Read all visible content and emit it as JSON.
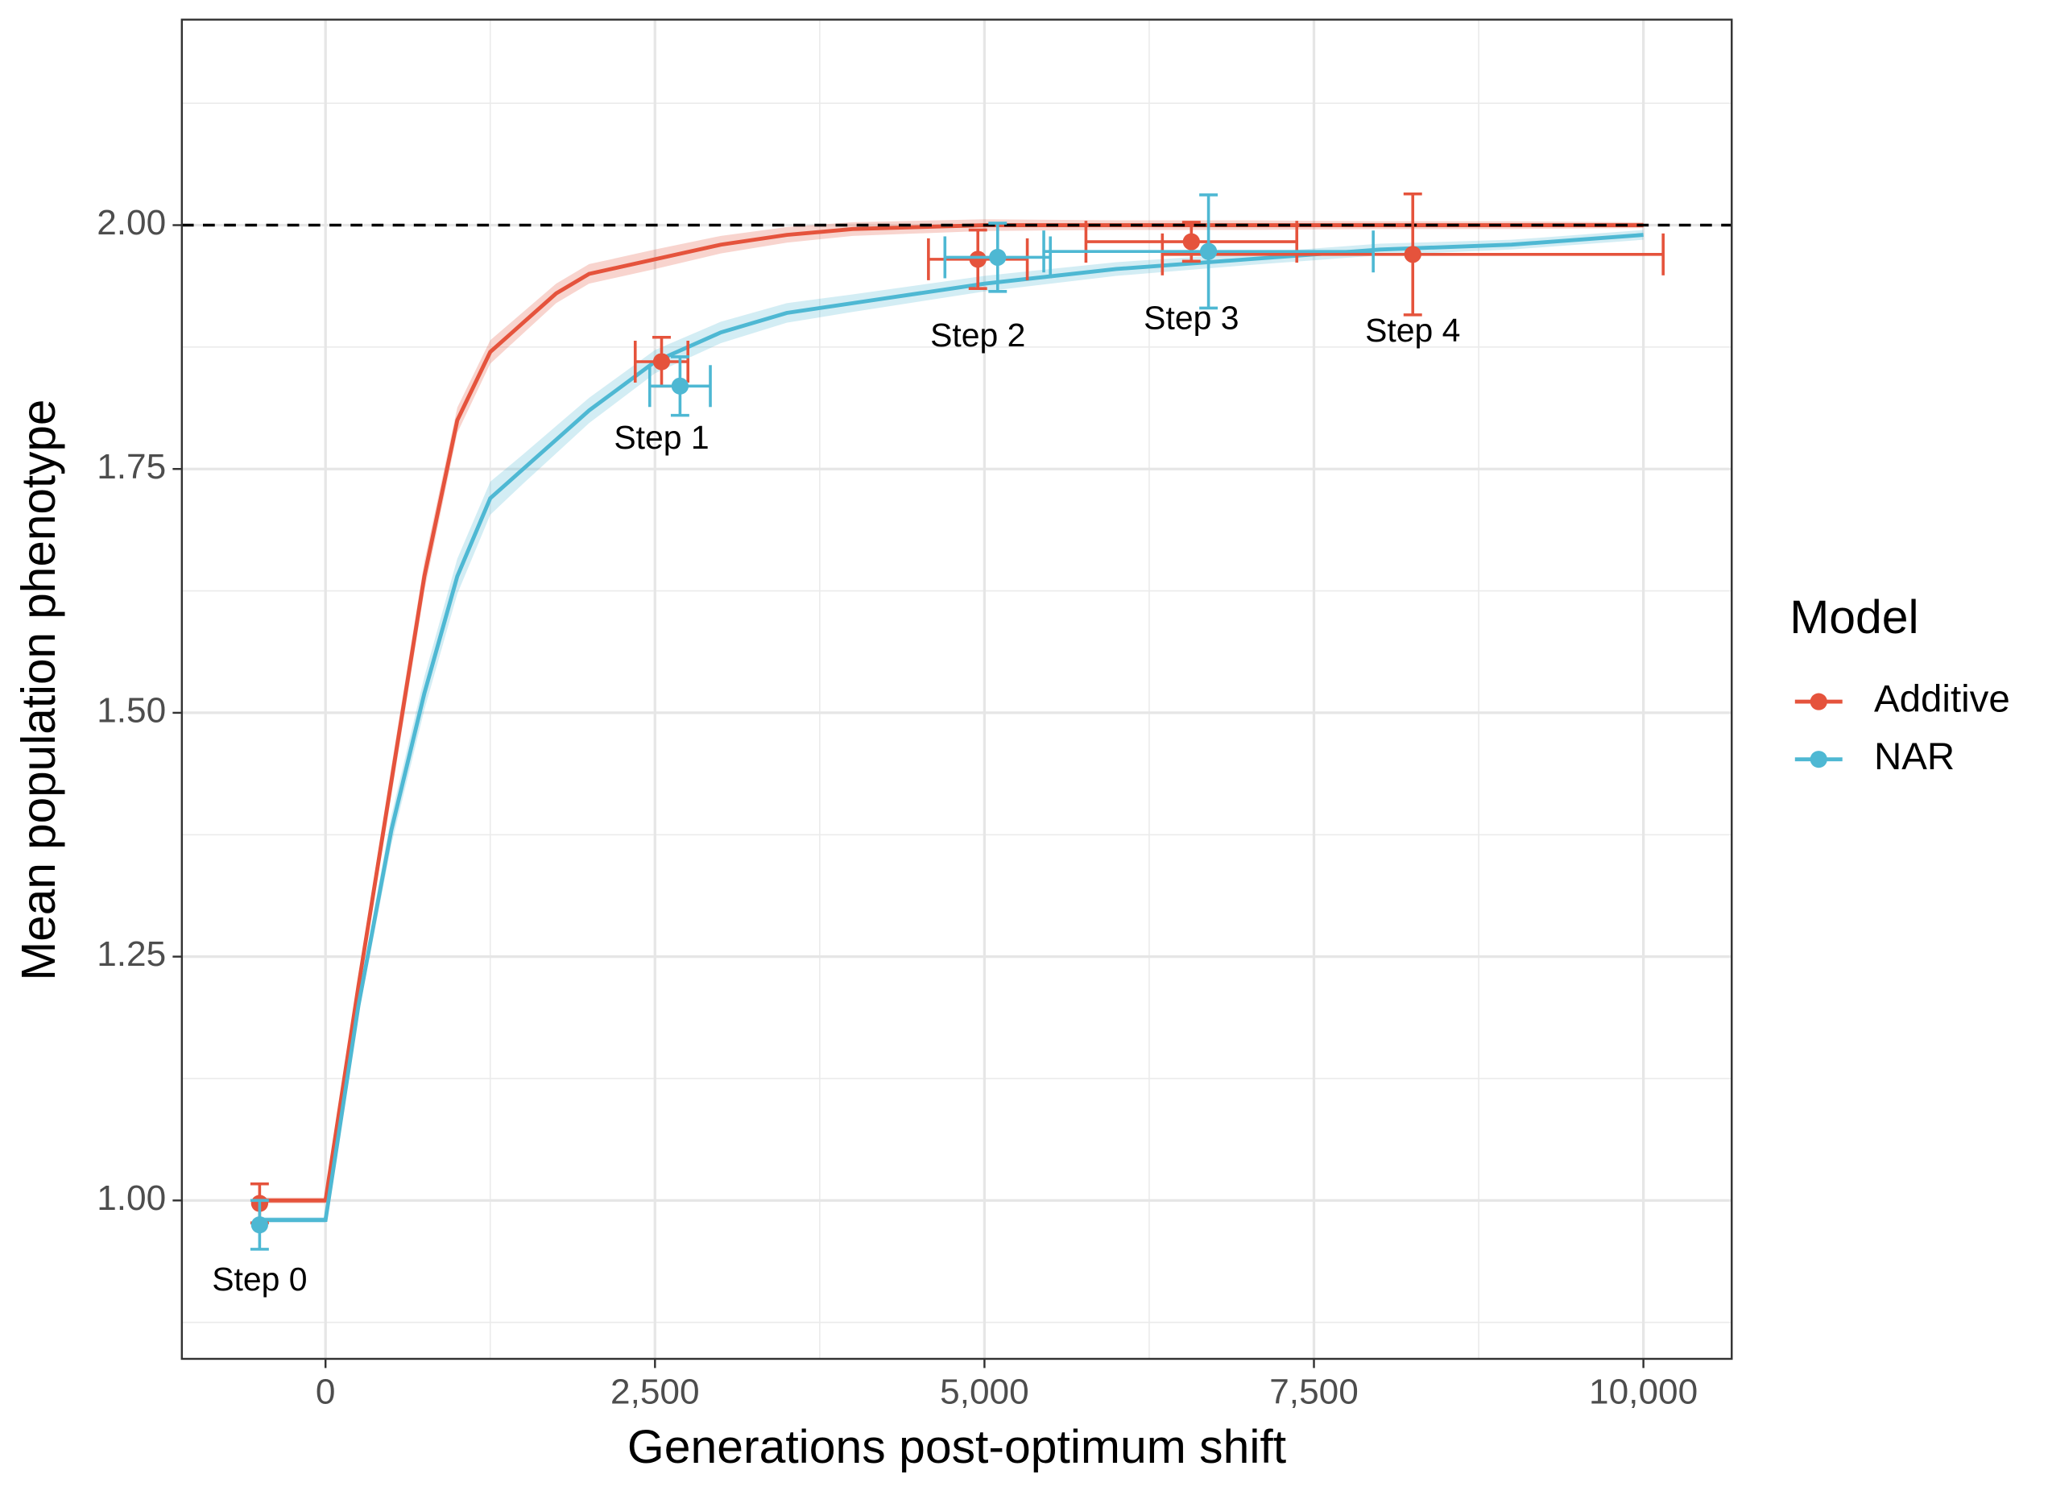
{
  "chart_data": {
    "type": "line",
    "xlabel": "Generations post-optimum shift",
    "ylabel": "Mean population phenotype",
    "legend_title": "Model",
    "legend_position": "right",
    "grid": true,
    "hline": 2,
    "xlim": [
      -1090,
      10670
    ],
    "ylim": [
      0.8376,
      2.2107
    ],
    "xticks": [
      0,
      {
        "value": 2500,
        "label": "2,500"
      },
      {
        "value": 5000,
        "label": "5,000"
      },
      {
        "value": 7500,
        "label": "7,500"
      },
      {
        "value": 10000,
        "label": "10,000"
      }
    ],
    "yticks": [
      {
        "value": 1,
        "label": "1.00"
      },
      {
        "value": 1.25,
        "label": "1.25"
      },
      {
        "value": 1.5,
        "label": "1.50"
      },
      {
        "value": 1.75,
        "label": "1.75"
      },
      {
        "value": 2,
        "label": "2.00"
      }
    ],
    "x_minor_grid": [
      1250,
      3750,
      6250,
      8750
    ],
    "y_minor_grid": [
      0.875,
      1.125,
      1.375,
      1.625,
      1.875,
      2.125
    ],
    "x": [
      -500,
      0,
      250,
      500,
      750,
      1000,
      1250,
      1500,
      1750,
      2000,
      2500,
      3000,
      3500,
      4000,
      5000,
      6000,
      7000,
      8000,
      9000,
      10000
    ],
    "annotations": [
      "Step 0",
      "Step 1",
      "Step 2",
      "Step 3",
      "Step 4"
    ],
    "series": [
      {
        "name": "Additive",
        "color": "#e5533c",
        "values": [
          1.0,
          1.0,
          1.22,
          1.43,
          1.64,
          1.8,
          1.87,
          1.9,
          1.93,
          1.95,
          1.965,
          1.98,
          1.99,
          1.996,
          2.0,
          2.0,
          2.0,
          2.0,
          2.0,
          2.0
        ],
        "lower": [
          0.997,
          0.997,
          1.21,
          1.415,
          1.625,
          1.787,
          1.858,
          1.889,
          1.92,
          1.94,
          1.955,
          1.971,
          1.982,
          1.989,
          1.994,
          1.995,
          1.995,
          1.996,
          1.996,
          1.997
        ],
        "upper": [
          1.003,
          1.003,
          1.23,
          1.445,
          1.655,
          1.813,
          1.882,
          1.911,
          1.94,
          1.96,
          1.975,
          1.989,
          1.998,
          2.003,
          2.006,
          2.005,
          2.005,
          2.004,
          2.004,
          2.003
        ],
        "points": {
          "x": [
            -500,
            2550,
            4950,
            6570,
            8250
          ],
          "y": [
            0.997,
            1.86,
            1.965,
            1.983,
            1.97
          ],
          "xerr": [
            0,
            200,
            375,
            800,
            1900
          ],
          "yerr": [
            0.02,
            0.025,
            0.03,
            0.02,
            0.062
          ]
        }
      },
      {
        "name": "NAR",
        "color": "#4eb8d3",
        "values": [
          0.98,
          0.98,
          1.2,
          1.38,
          1.52,
          1.64,
          1.72,
          1.75,
          1.78,
          1.81,
          1.86,
          1.89,
          1.91,
          1.92,
          1.94,
          1.955,
          1.965,
          1.975,
          1.98,
          1.99
        ],
        "lower": [
          0.977,
          0.977,
          1.19,
          1.365,
          1.503,
          1.622,
          1.703,
          1.735,
          1.766,
          1.797,
          1.848,
          1.879,
          1.9,
          1.911,
          1.932,
          1.948,
          1.959,
          1.969,
          1.975,
          1.985
        ],
        "upper": [
          0.983,
          0.983,
          1.21,
          1.395,
          1.537,
          1.658,
          1.737,
          1.765,
          1.794,
          1.823,
          1.872,
          1.901,
          1.92,
          1.929,
          1.948,
          1.962,
          1.971,
          1.981,
          1.985,
          1.995
        ],
        "points": {
          "x": [
            -500,
            2690,
            5100,
            6700
          ],
          "y": [
            0.975,
            1.835,
            1.967,
            1.973
          ],
          "xerr": [
            0,
            230,
            400,
            1250
          ],
          "yerr": [
            0.025,
            0.03,
            0.035,
            0.058
          ]
        }
      }
    ]
  }
}
